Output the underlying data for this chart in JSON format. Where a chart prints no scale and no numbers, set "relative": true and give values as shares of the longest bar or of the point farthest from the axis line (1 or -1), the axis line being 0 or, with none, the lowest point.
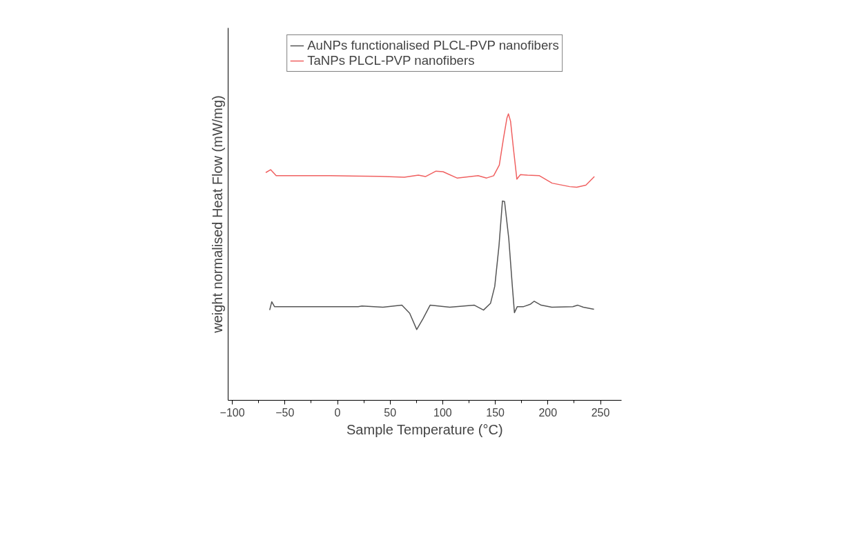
{
  "chart_data": {
    "type": "line",
    "relative": true,
    "xlabel": "Sample Temperature (°C)",
    "ylabel": "weight normalised Heat Flow (mW/mg)",
    "xlim": [
      -104,
      270
    ],
    "xticks": [
      -100,
      -50,
      0,
      50,
      100,
      150,
      200,
      250
    ],
    "legend": "top",
    "grid": false,
    "series": [
      {
        "name": "AuNPs functionalised PLCL-PVP nanofibers",
        "color": "#555555",
        "x": [
          -64.5,
          -62.5,
          -59.9,
          -47.2,
          19.7,
          23.2,
          43.2,
          61.2,
          68.6,
          75.3,
          81.3,
          88,
          106.7,
          130.1,
          138.8,
          145.5,
          149.5,
          153.5,
          156.8,
          158.8,
          162.8,
          166.2,
          168.2,
          170.9,
          176.9,
          183.6,
          187,
          193.6,
          203.7,
          223.7,
          228.4,
          233.7,
          243.8
        ],
        "values": [
          0.315,
          0.344,
          0.327,
          0.327,
          0.327,
          0.329,
          0.325,
          0.332,
          0.304,
          0.247,
          0.285,
          0.332,
          0.325,
          0.332,
          0.315,
          0.339,
          0.398,
          0.539,
          0.696,
          0.694,
          0.565,
          0.398,
          0.306,
          0.327,
          0.327,
          0.336,
          0.346,
          0.332,
          0.325,
          0.327,
          0.332,
          0.325,
          0.318
        ]
      },
      {
        "name": "TaNPs PLCL-PVP nanofibers",
        "color": "#f06060",
        "x": [
          -68.2,
          -63.6,
          -58.3,
          -50.3,
          -6.8,
          40,
          63.5,
          76.9,
          83.6,
          93.6,
          100.3,
          113.6,
          133.7,
          141.7,
          148.4,
          153.8,
          157.8,
          161.1,
          162.5,
          164.5,
          167.2,
          170.5,
          173.9,
          180.6,
          192,
          204,
          220.7,
          227.4,
          236.1,
          244.2
        ],
        "values": [
          0.795,
          0.805,
          0.784,
          0.784,
          0.784,
          0.782,
          0.779,
          0.786,
          0.781,
          0.8,
          0.798,
          0.776,
          0.784,
          0.776,
          0.784,
          0.821,
          0.915,
          0.986,
          1,
          0.974,
          0.88,
          0.772,
          0.788,
          0.786,
          0.784,
          0.758,
          0.746,
          0.744,
          0.751,
          0.781
        ]
      }
    ]
  }
}
